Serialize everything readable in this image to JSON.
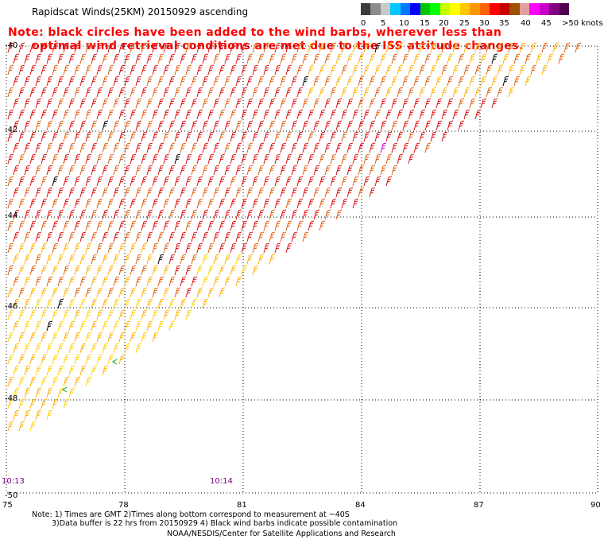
{
  "header": {
    "title": "Rapidscat Winds(25KM) 20150929 ascending",
    "note_line1": "Note: black circles have been added to the wind barbs, wherever less than",
    "note_line2": "optimal wind retrieval conditions are met due to the ISS attitude changes."
  },
  "legend": {
    "labels": [
      "0",
      "5",
      "10",
      "15",
      "20",
      "25",
      "30",
      "35",
      "40",
      "45",
      ">50 knots"
    ],
    "colors": [
      "#3c3c3c",
      "#8c8c8c",
      "#c8c8c8",
      "#00c8ff",
      "#0078ff",
      "#0000ff",
      "#00c800",
      "#00ff00",
      "#c8ff00",
      "#ffff00",
      "#ffc800",
      "#ff9600",
      "#ff6400",
      "#ff0000",
      "#c80000",
      "#a05000",
      "#e0a0a0",
      "#ff00ff",
      "#c800c8",
      "#800080",
      "#500050"
    ]
  },
  "axes": {
    "lat_labels": [
      "-40",
      "-42",
      "-44",
      "-46",
      "-48",
      "-50"
    ],
    "lon_labels": [
      "75",
      "78",
      "81",
      "84",
      "87",
      "90"
    ]
  },
  "times": [
    "10:13",
    "10:14"
  ],
  "footer": {
    "line1": "Note: 1) Times are GMT 2)Times along bottom correspond to measurement at ~40S",
    "line2": "3)Data buffer is 22 hrs from 20150929 4) Black wind barbs indicate possible contamination",
    "line3": "NOAA/NESDIS/Center for Satellite Applications and Research"
  },
  "barb_colors": {
    "strong": "#e01010",
    "moderate": "#e06010",
    "weak": "#ffd000",
    "light": "#ffb000",
    "flagged": "#000000",
    "very_strong": "#c800c8",
    "low": "#00a000"
  }
}
